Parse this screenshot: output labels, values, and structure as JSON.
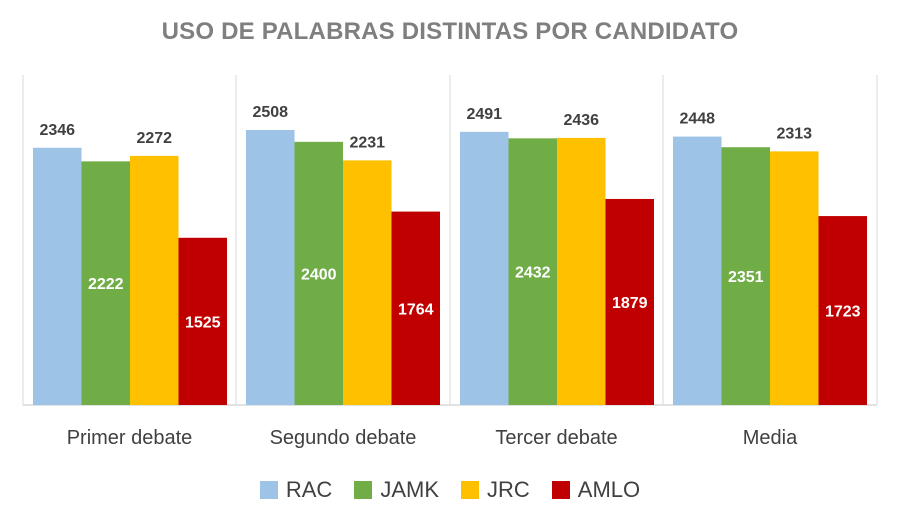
{
  "chart_data": {
    "type": "bar",
    "title": "USO DE PALABRAS DISTINTAS POR CANDIDATO",
    "categories": [
      "Primer debate",
      "Segundo debate",
      "Tercer debate",
      "Media"
    ],
    "series": [
      {
        "name": "RAC",
        "color": "#9dc3e6",
        "label_color": "#404040",
        "values": [
          2346,
          2508,
          2491,
          2448
        ]
      },
      {
        "name": "JAMK",
        "color": "#70ad47",
        "label_color": "#ffffff",
        "values": [
          2222,
          2400,
          2432,
          2351
        ]
      },
      {
        "name": "JRC",
        "color": "#ffc000",
        "label_color": "#404040",
        "values": [
          2272,
          2231,
          2436,
          2313
        ]
      },
      {
        "name": "AMLO",
        "color": "#c00000",
        "label_color": "#ffffff",
        "values": [
          1525,
          1764,
          1879,
          1723
        ]
      }
    ],
    "ylim": [
      0,
      2800
    ],
    "grid": false,
    "legend_position": "bottom"
  }
}
